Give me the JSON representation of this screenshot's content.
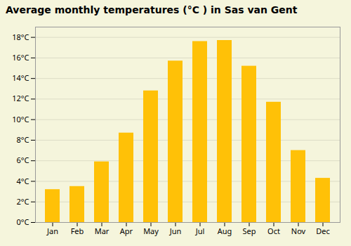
{
  "chart_data": {
    "type": "bar",
    "title": "Average monthly temperatures (°C ) in Sas van Gent",
    "categories": [
      "Jan",
      "Feb",
      "Mar",
      "Apr",
      "May",
      "Jun",
      "Jul",
      "Aug",
      "Sep",
      "Oct",
      "Nov",
      "Dec"
    ],
    "values": [
      3.2,
      3.5,
      5.9,
      8.7,
      12.8,
      15.7,
      17.6,
      17.7,
      15.2,
      11.7,
      7.0,
      4.3
    ],
    "color": "#FFC107",
    "ylim": [
      0,
      19
    ],
    "yticks": [
      {
        "value": 0,
        "label": "0°C"
      },
      {
        "value": 2,
        "label": "2°C"
      },
      {
        "value": 4,
        "label": "4°C"
      },
      {
        "value": 6,
        "label": "6°C"
      },
      {
        "value": 8,
        "label": "8°C"
      },
      {
        "value": 10,
        "label": "10°C"
      },
      {
        "value": 12,
        "label": "12°C"
      },
      {
        "value": 14,
        "label": "14°C"
      },
      {
        "value": 16,
        "label": "16°C"
      },
      {
        "value": 18,
        "label": "18°C"
      }
    ],
    "grid": true
  }
}
